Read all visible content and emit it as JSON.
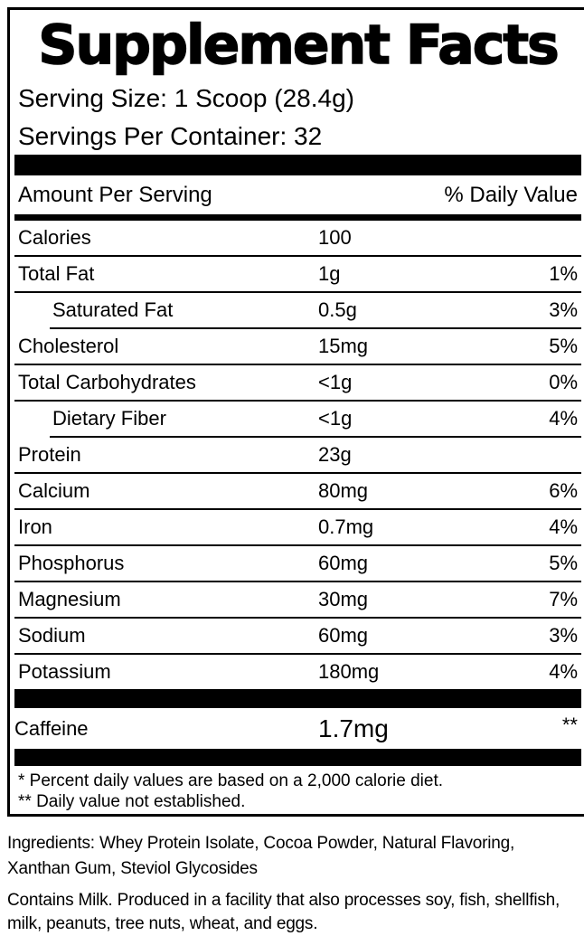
{
  "colors": {
    "ink": "#000000",
    "background": "#ffffff"
  },
  "label": {
    "title": "Supplement Facts",
    "serving_size": "Serving Size: 1 Scoop (28.4g)",
    "servings_per_container": "Servings Per Container: 32",
    "header": {
      "amount": "Amount Per Serving",
      "daily_value": "% Daily Value"
    },
    "rows": [
      {
        "name": "Calories",
        "amount": "100",
        "dv": "",
        "indent": false,
        "sep_indent": false
      },
      {
        "name": "Total Fat",
        "amount": "1g",
        "dv": "1%",
        "indent": false,
        "sep_indent": false
      },
      {
        "name": "Saturated Fat",
        "amount": "0.5g",
        "dv": "3%",
        "indent": true,
        "sep_indent": false
      },
      {
        "name": "Cholesterol",
        "amount": "15mg",
        "dv": "5%",
        "indent": false,
        "sep_indent": true
      },
      {
        "name": "Total Carbohydrates",
        "amount": "<1g",
        "dv": "0%",
        "indent": false,
        "sep_indent": false
      },
      {
        "name": "Dietary Fiber",
        "amount": "<1g",
        "dv": "4%",
        "indent": true,
        "sep_indent": false
      },
      {
        "name": "Protein",
        "amount": "23g",
        "dv": "",
        "indent": false,
        "sep_indent": true
      },
      {
        "name": "Calcium",
        "amount": "80mg",
        "dv": "6%",
        "indent": false,
        "sep_indent": false
      },
      {
        "name": "Iron",
        "amount": "0.7mg",
        "dv": "4%",
        "indent": false,
        "sep_indent": false
      },
      {
        "name": "Phosphorus",
        "amount": "60mg",
        "dv": "5%",
        "indent": false,
        "sep_indent": false
      },
      {
        "name": "Magnesium",
        "amount": "30mg",
        "dv": "7%",
        "indent": false,
        "sep_indent": false
      },
      {
        "name": "Sodium",
        "amount": "60mg",
        "dv": "3%",
        "indent": false,
        "sep_indent": false
      },
      {
        "name": "Potassium",
        "amount": "180mg",
        "dv": "4%",
        "indent": false,
        "sep_indent": false
      }
    ],
    "caffeine_row": {
      "name": "Caffeine",
      "amount": "1.7mg",
      "dv": "**"
    },
    "footnotes": [
      "* Percent daily values are based on a 2,000 calorie diet.",
      "** Daily value not established."
    ]
  },
  "below": {
    "ingredients": "Ingredients: Whey Protein Isolate, Cocoa Powder, Natural Flavoring, Xanthan Gum, Steviol Glycosides",
    "allergen": "Contains Milk. Produced in a facility that also processes soy, fish, shellfish, milk, peanuts, tree nuts, wheat, and eggs."
  }
}
